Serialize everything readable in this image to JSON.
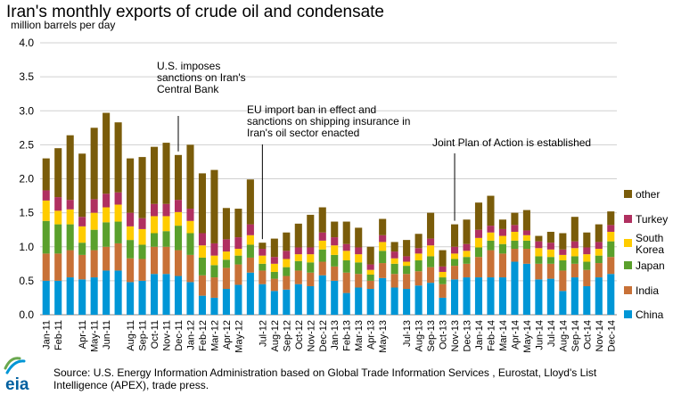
{
  "chart_data": {
    "type": "bar",
    "stacked": true,
    "title": "Iran's monthly exports of crude oil and condensate",
    "ylabel": "million barrels  per day",
    "ylim": [
      0,
      4.0
    ],
    "yticks": [
      "0.0",
      "0.5",
      "1.0",
      "1.5",
      "2.0",
      "2.5",
      "3.0",
      "3.5",
      "4.0"
    ],
    "ytick_values": [
      0,
      0.5,
      1.0,
      1.5,
      2.0,
      2.5,
      3.0,
      3.5,
      4.0
    ],
    "grid": true,
    "legend_position": "right",
    "categories": [
      "Jan-11",
      "Feb-11",
      "Mar-11",
      "Apr-11",
      "May-11",
      "Jun-11",
      "Jul-11",
      "Aug-11",
      "Sep-11",
      "Oct-11",
      "Nov-11",
      "Dec-11",
      "Jan-12",
      "Feb-12",
      "Mar-12",
      "Apr-12",
      "May-12",
      "Jun-12",
      "Jul-12",
      "Aug-12",
      "Sep-12",
      "Oct-12",
      "Nov-12",
      "Dec-12",
      "Jan-13",
      "Feb-13",
      "Mar-13",
      "Apr-13",
      "May-13",
      "Jun-13",
      "Jul-13",
      "Aug-13",
      "Sep-13",
      "Oct-13",
      "Nov-13",
      "Dec-13",
      "Jan-14",
      "Feb-14",
      "Mar-14",
      "Apr-14",
      "May-14",
      "Jun-14",
      "Jul-14",
      "Aug-14",
      "Sep-14",
      "Oct-14",
      "Nov-14",
      "Dec-14"
    ],
    "labeled_categories": [
      "Jan-11",
      "Feb-11",
      "Apr-11",
      "May-11",
      "Jun-11",
      "Aug-11",
      "Sep-11",
      "Oct-11",
      "Nov-11",
      "Dec-11",
      "Jan-12",
      "Feb-12",
      "Mar-12",
      "Apr-12",
      "May-12",
      "Jul-12",
      "Aug-12",
      "Sep-12",
      "Oct-12",
      "Nov-12",
      "Dec-12",
      "Jan-13",
      "Feb-13",
      "Mar-13",
      "Apr-13",
      "May-13",
      "Jul-13",
      "Aug-13",
      "Sep-13",
      "Oct-13",
      "Nov-13",
      "Dec-13",
      "Jan-14",
      "Feb-14",
      "Mar-14",
      "Apr-14",
      "May-14",
      "Jun-14",
      "Jul-14",
      "Aug-14",
      "Sep-14",
      "Oct-14",
      "Nov-14",
      "Dec-14"
    ],
    "series": [
      {
        "name": "China",
        "color": "#0096d6",
        "values": [
          0.5,
          0.5,
          0.55,
          0.52,
          0.55,
          0.65,
          0.65,
          0.48,
          0.5,
          0.6,
          0.6,
          0.57,
          0.48,
          0.28,
          0.25,
          0.38,
          0.44,
          0.62,
          0.45,
          0.35,
          0.37,
          0.45,
          0.42,
          0.58,
          0.5,
          0.32,
          0.4,
          0.38,
          0.54,
          0.4,
          0.38,
          0.43,
          0.47,
          0.25,
          0.52,
          0.55,
          0.55,
          0.55,
          0.55,
          0.78,
          0.75,
          0.52,
          0.53,
          0.35,
          0.55,
          0.42,
          0.55,
          0.6
        ]
      },
      {
        "name": "India",
        "color": "#c87137",
        "values": [
          0.4,
          0.4,
          0.4,
          0.36,
          0.4,
          0.35,
          0.4,
          0.35,
          0.32,
          0.4,
          0.4,
          0.38,
          0.4,
          0.3,
          0.3,
          0.31,
          0.3,
          0.22,
          0.2,
          0.18,
          0.2,
          0.2,
          0.2,
          0.2,
          0.21,
          0.3,
          0.2,
          0.12,
          0.22,
          0.2,
          0.22,
          0.21,
          0.23,
          0.2,
          0.2,
          0.2,
          0.3,
          0.4,
          0.35,
          0.19,
          0.22,
          0.23,
          0.22,
          0.3,
          0.2,
          0.24,
          0.21,
          0.25
        ]
      },
      {
        "name": "Japan",
        "color": "#5aa02c",
        "values": [
          0.48,
          0.43,
          0.38,
          0.18,
          0.3,
          0.36,
          0.32,
          0.27,
          0.21,
          0.2,
          0.23,
          0.36,
          0.32,
          0.26,
          0.18,
          0.12,
          0.13,
          0.19,
          0.1,
          0.1,
          0.13,
          0.14,
          0.15,
          0.18,
          0.17,
          0.18,
          0.17,
          0.09,
          0.18,
          0.15,
          0.12,
          0.16,
          0.16,
          0.1,
          0.1,
          0.1,
          0.14,
          0.14,
          0.14,
          0.12,
          0.12,
          0.11,
          0.1,
          0.15,
          0.11,
          0.12,
          0.11,
          0.23
        ]
      },
      {
        "name": "South Korea",
        "color": "#ffcc00",
        "values": [
          0.3,
          0.2,
          0.22,
          0.24,
          0.25,
          0.22,
          0.25,
          0.2,
          0.23,
          0.25,
          0.22,
          0.2,
          0.18,
          0.18,
          0.14,
          0.12,
          0.1,
          0.14,
          0.12,
          0.12,
          0.12,
          0.1,
          0.12,
          0.13,
          0.14,
          0.14,
          0.12,
          0.07,
          0.13,
          0.08,
          0.06,
          0.1,
          0.16,
          0.08,
          0.08,
          0.09,
          0.14,
          0.12,
          0.12,
          0.13,
          0.08,
          0.12,
          0.11,
          0.08,
          0.12,
          0.11,
          0.1,
          0.14
        ]
      },
      {
        "name": "Turkey",
        "color": "#b03060",
        "values": [
          0.15,
          0.2,
          0.14,
          0.14,
          0.2,
          0.2,
          0.18,
          0.2,
          0.16,
          0.18,
          0.18,
          0.18,
          0.18,
          0.18,
          0.18,
          0.18,
          0.17,
          0.16,
          0.1,
          0.1,
          0.12,
          0.1,
          0.1,
          0.12,
          0.12,
          0.1,
          0.1,
          0.08,
          0.1,
          0.1,
          0.08,
          0.08,
          0.1,
          0.08,
          0.1,
          0.1,
          0.12,
          0.1,
          0.1,
          0.1,
          0.07,
          0.1,
          0.1,
          0.08,
          0.1,
          0.1,
          0.1,
          0.1
        ]
      },
      {
        "name": "other",
        "color": "#7a5c0a",
        "values": [
          0.47,
          0.72,
          0.95,
          0.93,
          1.05,
          1.19,
          1.03,
          0.8,
          0.9,
          0.84,
          0.9,
          0.66,
          0.94,
          0.88,
          1.08,
          0.46,
          0.42,
          0.66,
          0.09,
          0.27,
          0.27,
          0.35,
          0.48,
          0.37,
          0.23,
          0.33,
          0.29,
          0.26,
          0.24,
          0.14,
          0.24,
          0.21,
          0.38,
          0.24,
          0.33,
          0.36,
          0.4,
          0.44,
          0.14,
          0.18,
          0.3,
          0.08,
          0.16,
          0.24,
          0.36,
          0.22,
          0.26,
          0.2
        ]
      }
    ],
    "annotations": [
      {
        "id": "ann1",
        "category": "Dec-11",
        "lines": [
          "U.S. imposes",
          "sanctions on Iran's",
          "Central Bank"
        ]
      },
      {
        "id": "ann2",
        "category": "Jul-12",
        "lines": [
          "EU import ban in effect and",
          "sanctions on shipping insurance in",
          "Iran's oil sector enacted"
        ]
      },
      {
        "id": "ann3",
        "category": "Nov-13",
        "lines": [
          "Joint Plan of Action is established"
        ]
      }
    ]
  },
  "footer": {
    "source_line1": "Source: U.S. Energy Information Administration based on Global Trade Information Services , Eurostat, Lloyd's List",
    "source_line2": "Intelligence (APEX), trade press.",
    "logo_text": "eia"
  }
}
